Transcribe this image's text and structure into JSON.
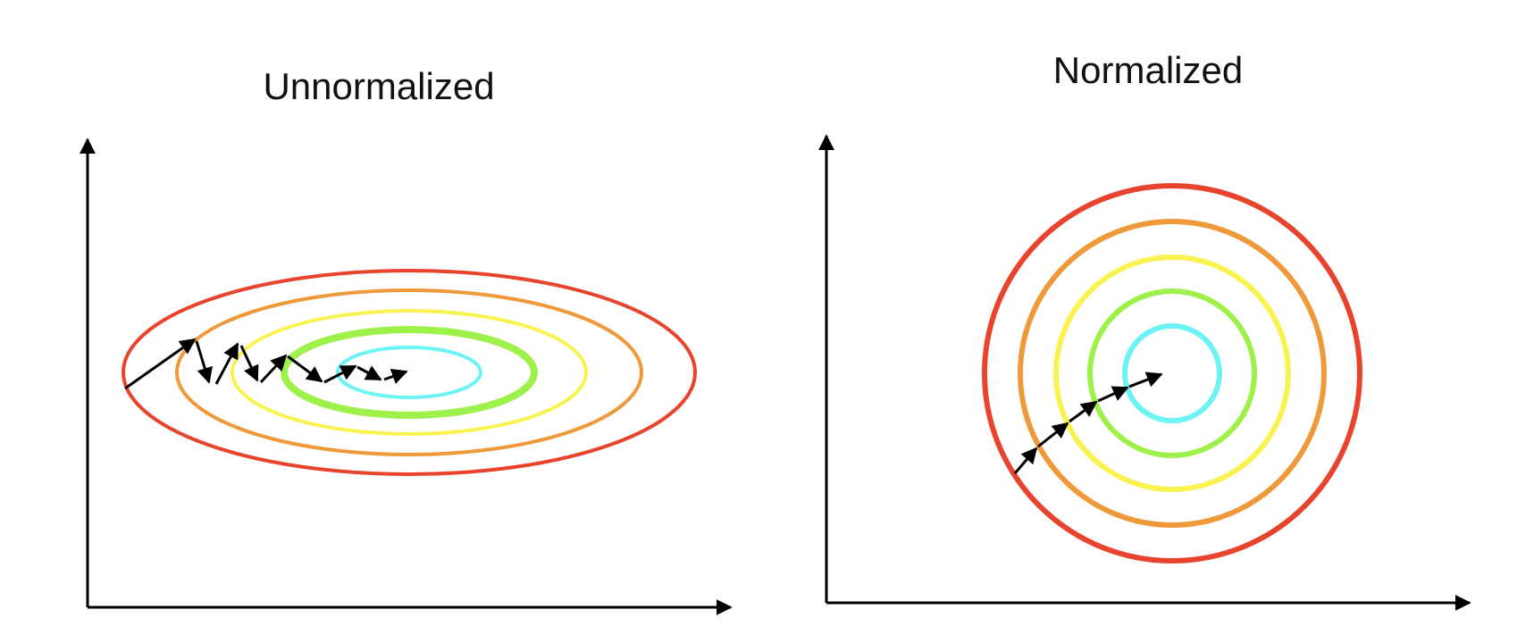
{
  "panels": [
    {
      "title": "Unnormalized",
      "contour_colors": [
        "#e8432d",
        "#ef9a3a",
        "#f9f352",
        "#9ef04a",
        "#6ef3f5"
      ],
      "arrow_color": "#000000"
    },
    {
      "title": "Normalized",
      "contour_colors": [
        "#e8432d",
        "#ef9a3a",
        "#f9f352",
        "#9ef04a",
        "#6ef3f5"
      ],
      "arrow_color": "#000000"
    }
  ]
}
